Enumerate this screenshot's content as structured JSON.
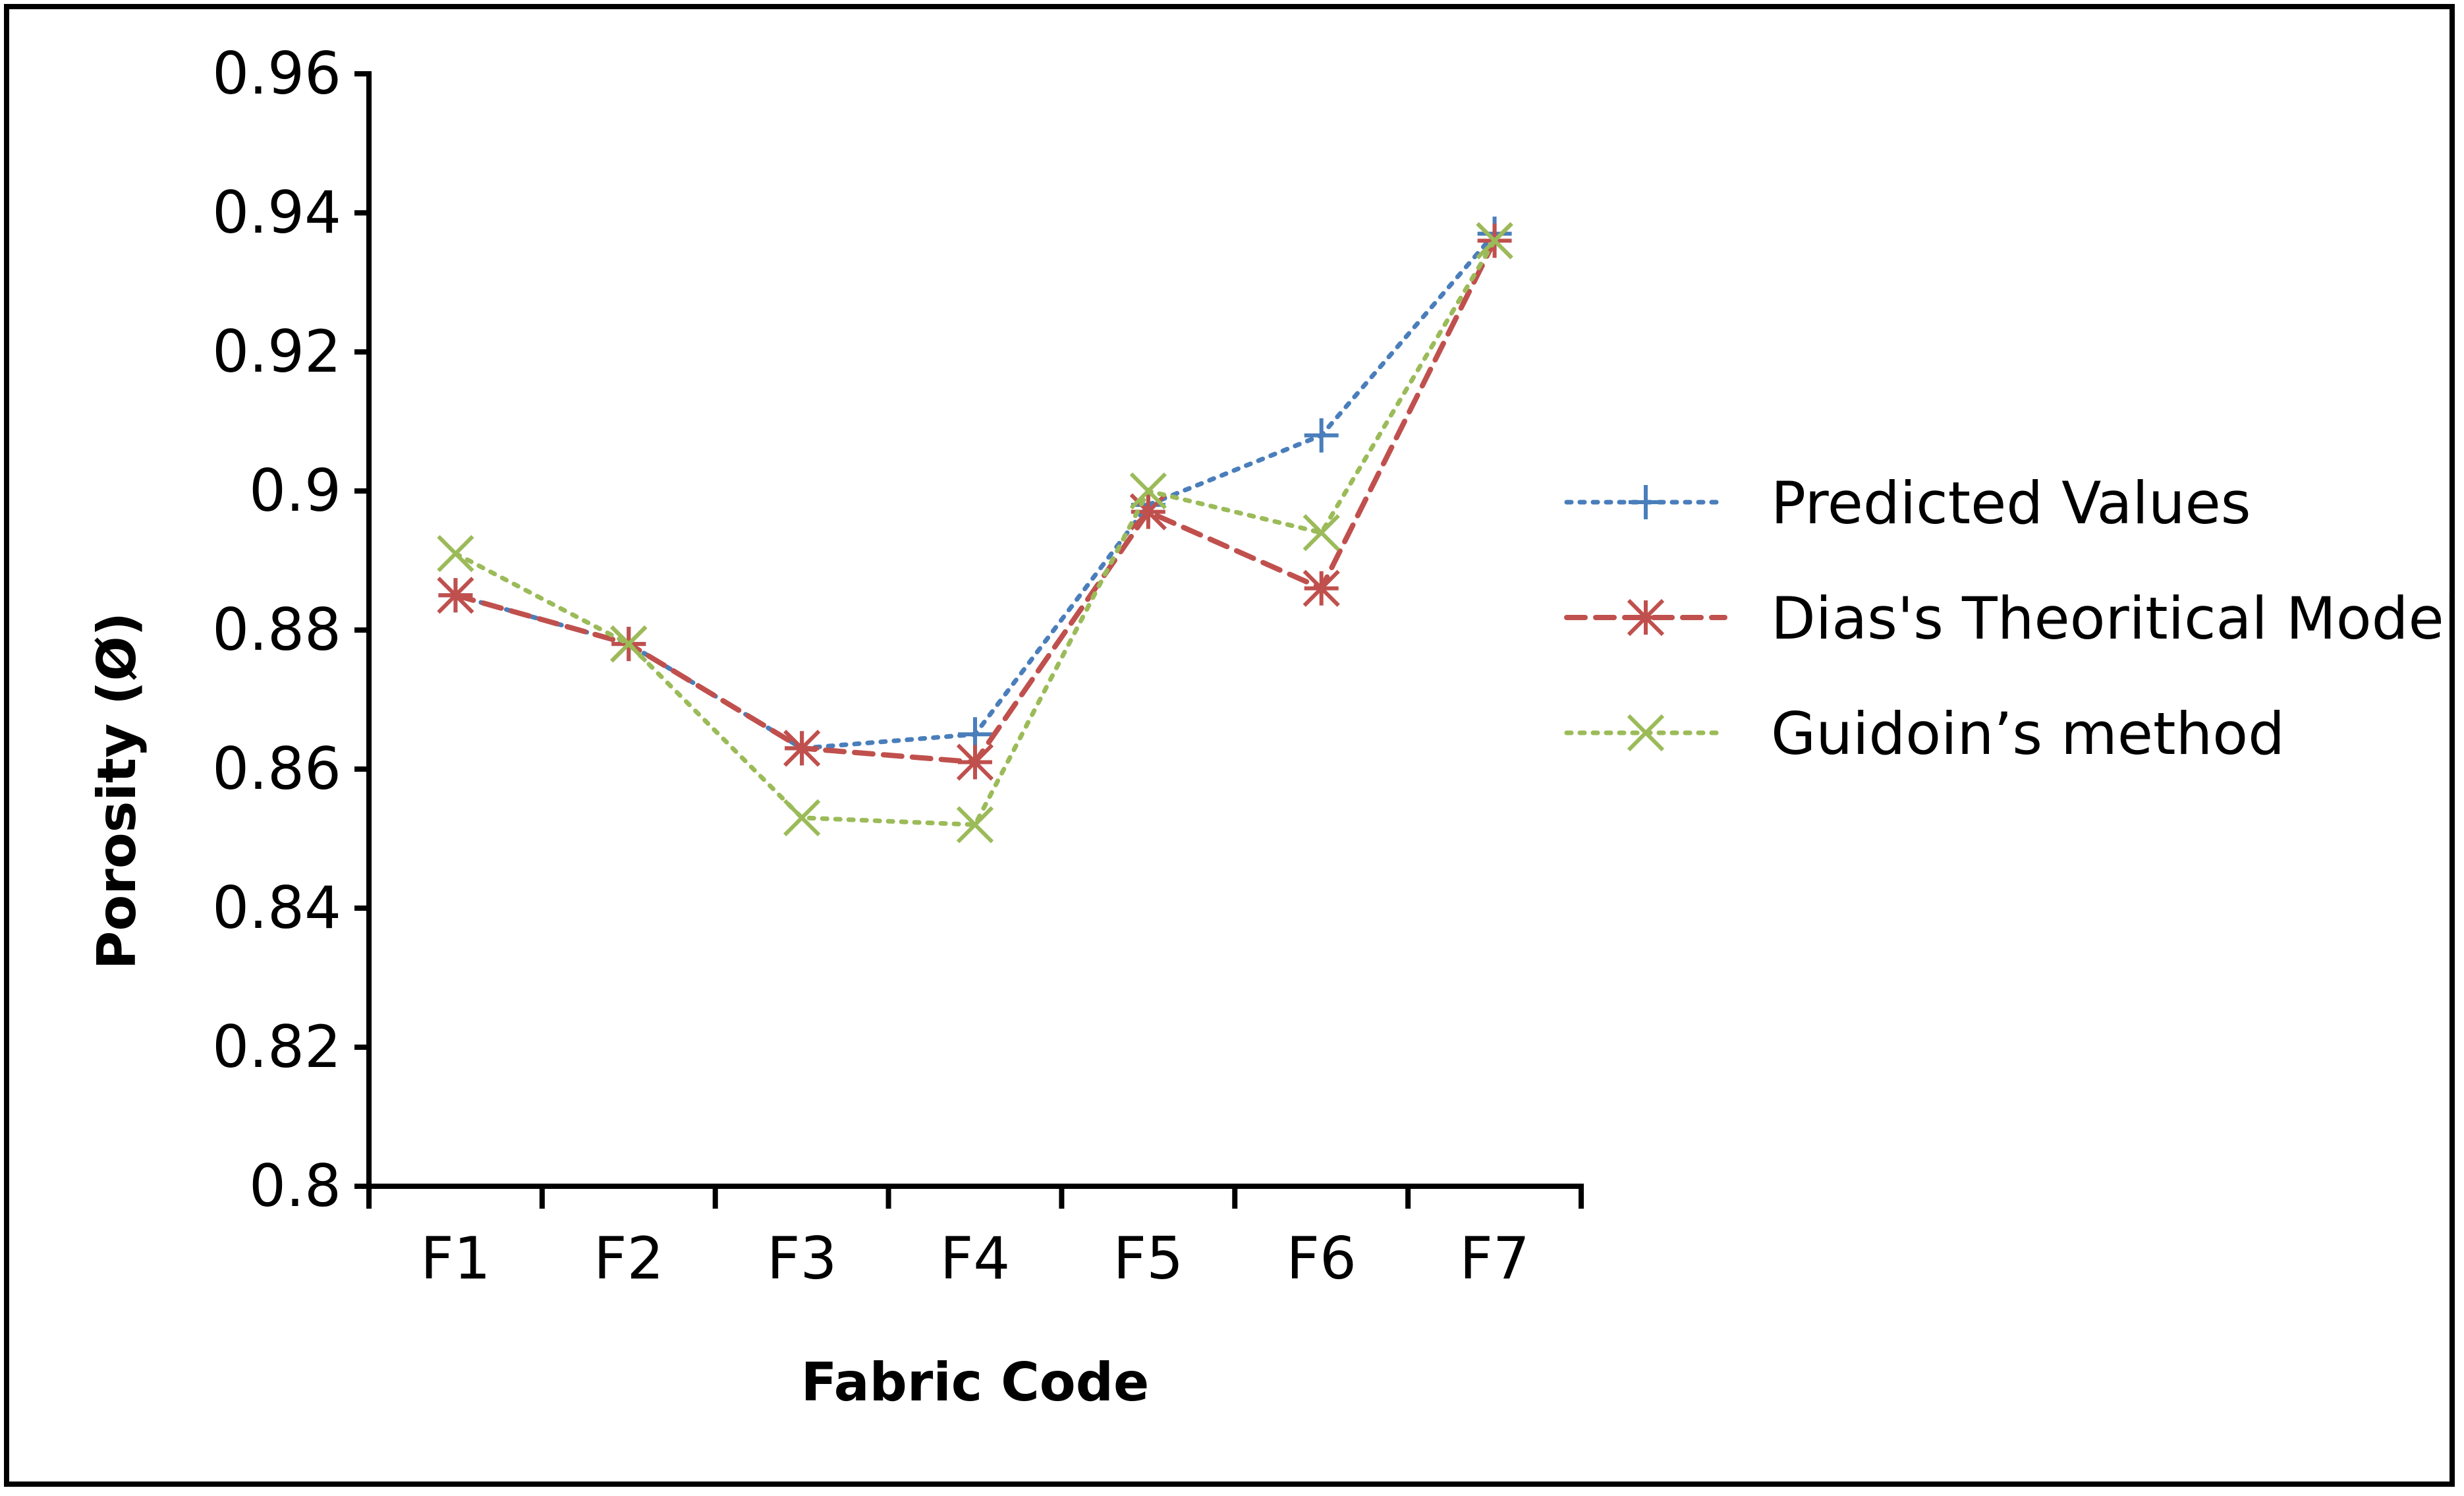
{
  "chart_data": {
    "type": "line",
    "xlabel": "Fabric Code",
    "ylabel": "Porosity (Ø)",
    "categories": [
      "F1",
      "F2",
      "F3",
      "F4",
      "F5",
      "F6",
      "F7"
    ],
    "ylim": [
      0.8,
      0.96
    ],
    "yticks": [
      0.8,
      0.82,
      0.84,
      0.86,
      0.88,
      0.9,
      0.92,
      0.94,
      0.96
    ],
    "ytick_labels": [
      "0.8",
      "0.82",
      "0.84",
      "0.86",
      "0.88",
      "0.9",
      "0.92",
      "0.94",
      "0.96"
    ],
    "grid": false,
    "legend_position": "right",
    "series": [
      {
        "name": "Predicted Values",
        "values": [
          0.885,
          0.878,
          0.863,
          0.865,
          0.898,
          0.908,
          0.937
        ],
        "color": "#4A7EBB",
        "line_style": "dotted",
        "marker": "plus"
      },
      {
        "name": "Dias's Theoritical Model",
        "values": [
          0.885,
          0.878,
          0.863,
          0.861,
          0.897,
          0.886,
          0.936
        ],
        "color": "#C0504D",
        "line_style": "dashed",
        "marker": "asterisk"
      },
      {
        "name": "Guidoin’s method",
        "values": [
          0.891,
          0.878,
          0.853,
          0.852,
          0.9,
          0.894,
          0.936
        ],
        "color": "#9BBB59",
        "line_style": "dotted",
        "marker": "x"
      }
    ]
  }
}
